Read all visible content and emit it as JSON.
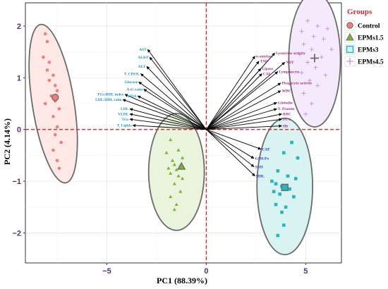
{
  "chart_data": {
    "type": "scatter",
    "title": "",
    "xlabel": "PC1 (88.39%)",
    "ylabel": "PC2 (4.14%)",
    "xlim": [
      -9.1,
      6.8
    ],
    "ylim": [
      -2.58,
      2.45
    ],
    "xticks": [
      -5,
      0,
      5
    ],
    "yticks": [
      -2,
      -1,
      0,
      1,
      2
    ],
    "grid": true,
    "reference_lines": {
      "x": 0,
      "y": 0,
      "color": "#e0282a",
      "style": "dashed"
    },
    "legend": {
      "title": "Groups",
      "placement": "right",
      "entries": [
        {
          "name": "Control",
          "marker": "circle",
          "color": "#f07f7a"
        },
        {
          "name": "EPMs1.5",
          "marker": "triangle",
          "color": "#78b728"
        },
        {
          "name": "EPMs3",
          "marker": "square",
          "color": "#27b6ba"
        },
        {
          "name": "EPMs4.5",
          "marker": "plus",
          "color": "#c48fe0"
        }
      ]
    },
    "series": [
      {
        "name": "Control",
        "color": "#f07f7a",
        "fill": "#fde8e5",
        "marker": "circle",
        "points": [
          [
            -8.1,
            1.85
          ],
          [
            -8.0,
            1.7
          ],
          [
            -8.2,
            1.4
          ],
          [
            -7.9,
            1.3
          ],
          [
            -8.0,
            1.15
          ],
          [
            -7.7,
            1.05
          ],
          [
            -7.9,
            0.95
          ],
          [
            -7.6,
            0.85
          ],
          [
            -7.5,
            0.75
          ],
          [
            -7.8,
            0.65
          ],
          [
            -7.6,
            0.55
          ],
          [
            -8.1,
            0.5
          ],
          [
            -7.4,
            0.4
          ],
          [
            -7.7,
            0.25
          ],
          [
            -7.5,
            0.05
          ],
          [
            -7.6,
            -0.1
          ],
          [
            -7.3,
            -0.25
          ],
          [
            -7.7,
            -0.4
          ],
          [
            -7.5,
            -0.6
          ],
          [
            -7.4,
            -0.75
          ]
        ],
        "centroid": [
          -7.6,
          0.62
        ],
        "ellipse": {
          "cx": -7.7,
          "cy": 0.5,
          "rx": 1.05,
          "ry": 1.55,
          "angle": -9
        }
      },
      {
        "name": "EPMs1.5",
        "color": "#78b728",
        "fill": "#eaf3dc",
        "marker": "triangle",
        "points": [
          [
            -1.8,
            -0.2
          ],
          [
            -1.4,
            -0.4
          ],
          [
            -2.0,
            -0.45
          ],
          [
            -1.2,
            -0.55
          ],
          [
            -1.7,
            -0.6
          ],
          [
            -1.6,
            -0.68
          ],
          [
            -1.3,
            -0.72
          ],
          [
            -1.9,
            -0.75
          ],
          [
            -1.5,
            -0.78
          ],
          [
            -1.8,
            -0.85
          ],
          [
            -1.4,
            -0.9
          ],
          [
            -1.2,
            -0.95
          ],
          [
            -1.6,
            -1.05
          ],
          [
            -1.3,
            -1.2
          ],
          [
            -1.8,
            -1.3
          ],
          [
            -1.5,
            -1.45
          ],
          [
            -1.6,
            -1.55
          ]
        ],
        "centroid": [
          -1.25,
          -0.72
        ],
        "ellipse": {
          "cx": -1.5,
          "cy": -0.82,
          "rx": 1.4,
          "ry": 1.13,
          "angle": 0
        }
      },
      {
        "name": "EPMs3",
        "color": "#27b6ba",
        "fill": "#d9f3f3",
        "marker": "square",
        "points": [
          [
            4.3,
            -0.25
          ],
          [
            3.9,
            -0.45
          ],
          [
            4.6,
            -0.55
          ],
          [
            3.6,
            -0.8
          ],
          [
            4.1,
            -0.9
          ],
          [
            4.5,
            -0.95
          ],
          [
            3.3,
            -1.0
          ],
          [
            3.5,
            -1.05
          ],
          [
            3.8,
            -1.1
          ],
          [
            4.2,
            -1.15
          ],
          [
            3.4,
            -1.2
          ],
          [
            3.7,
            -1.25
          ],
          [
            4.4,
            -1.3
          ],
          [
            3.5,
            -1.45
          ],
          [
            4.0,
            -1.5
          ],
          [
            3.8,
            -1.6
          ],
          [
            3.9,
            -1.85
          ],
          [
            3.6,
            -2.05
          ]
        ],
        "centroid": [
          3.95,
          -1.12
        ],
        "ellipse": {
          "cx": 3.95,
          "cy": -1.1,
          "rx": 1.4,
          "ry": 1.32,
          "angle": 0
        }
      },
      {
        "name": "EPMs4.5",
        "color": "#c48fe0",
        "fill": "#f4eafb",
        "marker": "plus",
        "points": [
          [
            5.1,
            2.1
          ],
          [
            5.6,
            2.0
          ],
          [
            6.1,
            1.95
          ],
          [
            4.8,
            1.9
          ],
          [
            5.4,
            1.8
          ],
          [
            5.9,
            1.75
          ],
          [
            4.9,
            1.65
          ],
          [
            5.3,
            1.55
          ],
          [
            6.3,
            1.55
          ],
          [
            4.7,
            1.45
          ],
          [
            5.8,
            1.4
          ],
          [
            5.1,
            1.3
          ],
          [
            5.5,
            1.2
          ],
          [
            4.8,
            1.1
          ],
          [
            6.0,
            1.05
          ],
          [
            5.2,
            0.95
          ],
          [
            5.6,
            0.85
          ],
          [
            4.9,
            0.7
          ],
          [
            5.3,
            0.5
          ],
          [
            5.0,
            0.3
          ]
        ],
        "centroid": [
          5.45,
          1.38
        ],
        "ellipse": {
          "cx": 5.45,
          "cy": 1.35,
          "rx": 1.3,
          "ry": 1.3,
          "angle": 0
        }
      }
    ],
    "vectors": [
      {
        "label": "AST",
        "x": -2.95,
        "y": 1.55,
        "color": "#1a8fd0"
      },
      {
        "label": "ALKP",
        "x": -2.85,
        "y": 1.4,
        "color": "#1a8fd0"
      },
      {
        "label": "ALT",
        "x": -3.0,
        "y": 1.22,
        "color": "#1a8fd0"
      },
      {
        "label": "T. CHOL",
        "x": -3.3,
        "y": 1.08,
        "color": "#1a8fd0"
      },
      {
        "label": "Glucose",
        "x": -3.4,
        "y": 0.92,
        "color": "#1a8fd0"
      },
      {
        "label": "A:G ratio",
        "x": -3.15,
        "y": 0.78,
        "color": "#1a8fd0"
      },
      {
        "label": "TGs:HDL index",
        "x": -4.1,
        "y": 0.68,
        "color": "#1a8fd0"
      },
      {
        "label": "NIDA",
        "x": -3.45,
        "y": 0.65,
        "color": "#1a8fd0"
      },
      {
        "label": "LDL:HDL ratio",
        "x": -4.2,
        "y": 0.58,
        "color": "#1a8fd0"
      },
      {
        "label": "LDL",
        "x": -3.85,
        "y": 0.4,
        "color": "#1a8fd0"
      },
      {
        "label": "VLDL",
        "x": -3.85,
        "y": 0.3,
        "color": "#1a8fd0"
      },
      {
        "label": "TGs",
        "x": -3.85,
        "y": 0.2,
        "color": "#1a8fd0"
      },
      {
        "label": "T. Lipids",
        "x": -3.7,
        "y": 0.08,
        "color": "#1a8fd0"
      },
      {
        "label": "α-amylase",
        "x": 2.45,
        "y": 1.42,
        "color": "#b0268f"
      },
      {
        "label": "TAP",
        "x": 2.65,
        "y": 1.32,
        "color": "#b0268f"
      },
      {
        "label": "Lipase",
        "x": 2.75,
        "y": 1.18,
        "color": "#b0268f"
      },
      {
        "label": "CAI",
        "x": 2.8,
        "y": 1.08,
        "color": "#b0268f"
      },
      {
        "label": "Lysozyme activity",
        "x": 3.45,
        "y": 1.48,
        "color": "#b0268f"
      },
      {
        "label": "NBT",
        "x": 3.95,
        "y": 1.3,
        "color": "#b0268f"
      },
      {
        "label": "Lymphocyte",
        "x": 3.6,
        "y": 1.12,
        "color": "#b0268f"
      },
      {
        "label": "Phagocyte activity",
        "x": 3.75,
        "y": 0.9,
        "color": "#b0268f"
      },
      {
        "label": "WBC",
        "x": 3.75,
        "y": 0.75,
        "color": "#b0268f"
      },
      {
        "label": "Globulin",
        "x": 3.55,
        "y": 0.52,
        "color": "#b0268f"
      },
      {
        "label": "T. Protein",
        "x": 3.55,
        "y": 0.4,
        "color": "#b0268f"
      },
      {
        "label": "RBC",
        "x": 3.8,
        "y": 0.3,
        "color": "#b0268f"
      },
      {
        "label": "PCV",
        "x": 3.8,
        "y": 0.2,
        "color": "#b0268f"
      },
      {
        "label": "Hb",
        "x": 3.8,
        "y": 0.07,
        "color": "#b0268f"
      },
      {
        "label": "CAT",
        "x": 2.75,
        "y": -0.38,
        "color": "#2b3bd1"
      },
      {
        "label": "GSH-Px",
        "x": 2.4,
        "y": -0.56,
        "color": "#2b3bd1"
      },
      {
        "label": "SOD",
        "x": 2.4,
        "y": -0.72,
        "color": "#2b3bd1"
      },
      {
        "label": "HDL",
        "x": 2.45,
        "y": -0.9,
        "color": "#2b3bd1"
      }
    ]
  }
}
